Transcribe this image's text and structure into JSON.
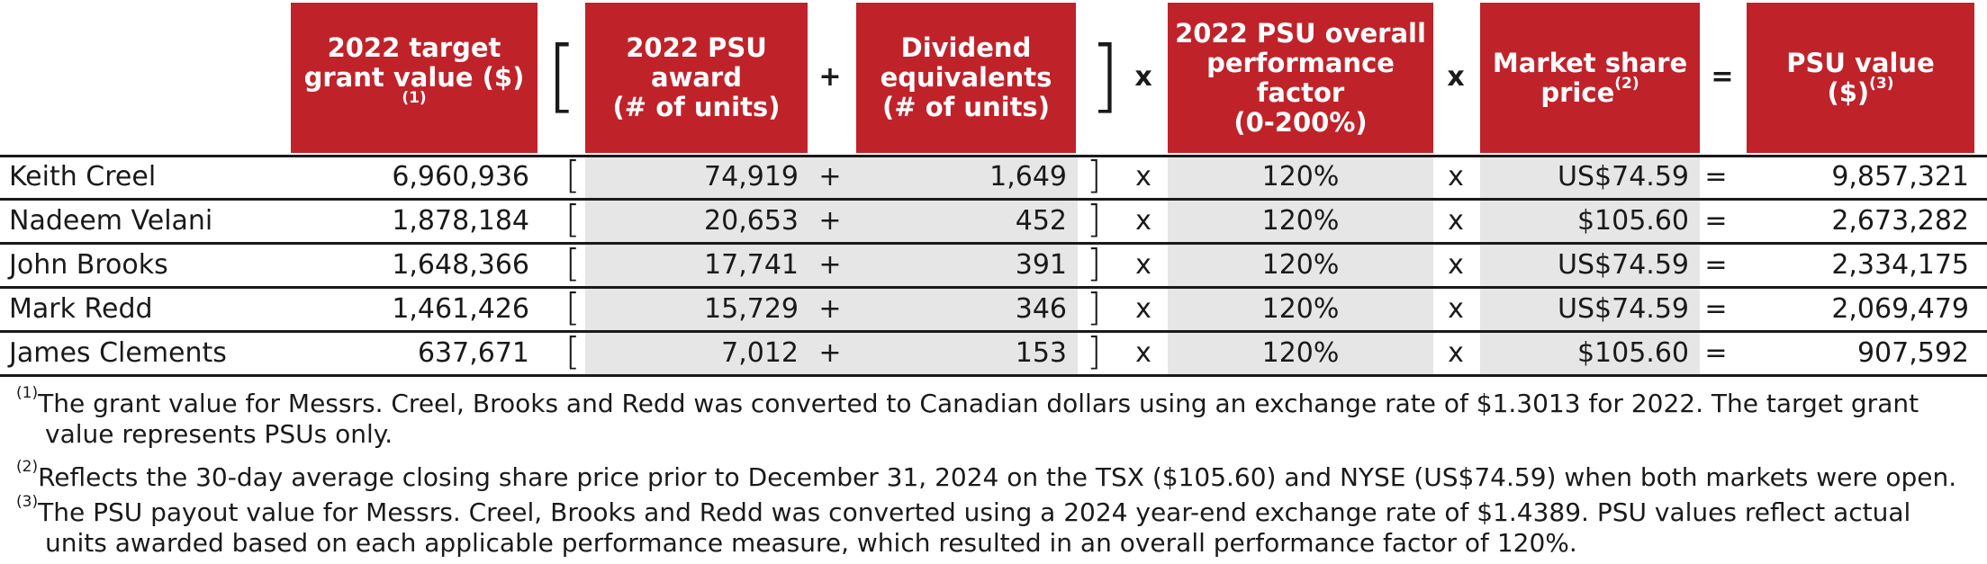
{
  "headers": {
    "target": {
      "line1": "2022 target",
      "line2": "grant value ($)",
      "sup": "(1)"
    },
    "psu_award": {
      "line1": "2022 PSU",
      "line2": "award",
      "line3": "(# of units)"
    },
    "dividend": {
      "line1": "Dividend",
      "line2": "equivalents",
      "line3": "(# of units)"
    },
    "perf": {
      "line1": "2022 PSU overall",
      "line2": "performance",
      "line3": "factor",
      "line4": "(0-200%)"
    },
    "market": {
      "line1": "Market share",
      "line2": "price",
      "sup": "(2)"
    },
    "psu_value": {
      "line1": "PSU value",
      "line2": "($)",
      "sup": "(3)"
    }
  },
  "operators": {
    "open_bracket": "[",
    "close_bracket": "]",
    "plus": "+",
    "times": "x",
    "equals": "="
  },
  "rows": [
    {
      "name": "Keith Creel",
      "target": "6,960,936",
      "award": "74,919",
      "dividend": "1,649",
      "factor": "120%",
      "price": "US$74.59",
      "value": "9,857,321"
    },
    {
      "name": "Nadeem Velani",
      "target": "1,878,184",
      "award": "20,653",
      "dividend": "452",
      "factor": "120%",
      "price": "$105.60",
      "value": "2,673,282"
    },
    {
      "name": "John Brooks",
      "target": "1,648,366",
      "award": "17,741",
      "dividend": "391",
      "factor": "120%",
      "price": "US$74.59",
      "value": "2,334,175"
    },
    {
      "name": "Mark Redd",
      "target": "1,461,426",
      "award": "15,729",
      "dividend": "346",
      "factor": "120%",
      "price": "US$74.59",
      "value": "2,069,479"
    },
    {
      "name": "James Clements",
      "target": "637,671",
      "award": "7,012",
      "dividend": "153",
      "factor": "120%",
      "price": "$105.60",
      "value": "907,592"
    }
  ],
  "footnotes": [
    {
      "mark": "(1)",
      "line1": "The grant value for Messrs. Creel, Brooks and Redd was converted to Canadian dollars using an exchange rate of $1.3013 for 2022. The target grant",
      "line2": "value represents PSUs only."
    },
    {
      "mark": "(2)",
      "line1": "Reflects the 30-day average closing share price prior to December 31, 2024 on the TSX ($105.60) and NYSE (US$74.59) when both markets were open.",
      "line2": ""
    },
    {
      "mark": "(3)",
      "line1": "The PSU payout value for Messrs. Creel, Brooks and Redd was converted using a 2024 year-end exchange rate of $1.4389. PSU values reflect actual",
      "line2": "units awarded based on each applicable performance measure, which resulted in an overall performance factor of 120%."
    }
  ]
}
